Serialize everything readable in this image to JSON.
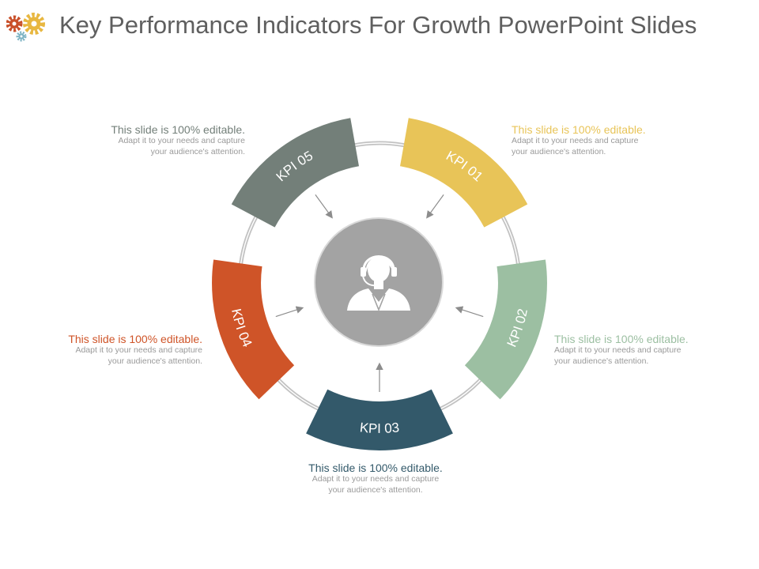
{
  "title": "Key Performance Indicators For Growth PowerPoint Slides",
  "center_icon": "support-agent-icon",
  "colors": {
    "kpi01": "#e8c458",
    "kpi02": "#9cbfa2",
    "kpi03": "#33596a",
    "kpi04": "#cf5428",
    "kpi05": "#737f79",
    "center": "#a3a3a3",
    "ring": "#bdbdbd",
    "title": "#5f5f5f",
    "body_text": "#9a9a9a"
  },
  "segments": [
    {
      "label": "KPI 01"
    },
    {
      "label": "KPI 02"
    },
    {
      "label": "KPI 03"
    },
    {
      "label": "KPI 04"
    },
    {
      "label": "KPI 05"
    }
  ],
  "textboxes": {
    "kpi01": {
      "heading": "This slide is 100% editable.",
      "line1": "Adapt it to your needs and capture",
      "line2": "your audience's attention."
    },
    "kpi02": {
      "heading": "This slide is 100% editable.",
      "line1": "Adapt it to your needs and capture",
      "line2": "your audience's attention."
    },
    "kpi03": {
      "heading": "This slide is 100% editable.",
      "line1": "Adapt it to your needs and capture",
      "line2": "your audience's attention."
    },
    "kpi04": {
      "heading": "This slide is 100% editable.",
      "line1": "Adapt it to your needs and capture",
      "line2": "your audience's attention."
    },
    "kpi05": {
      "heading": "This slide is 100% editable.",
      "line1": "Adapt it to your needs and capture",
      "line2": "your audience's attention."
    }
  }
}
